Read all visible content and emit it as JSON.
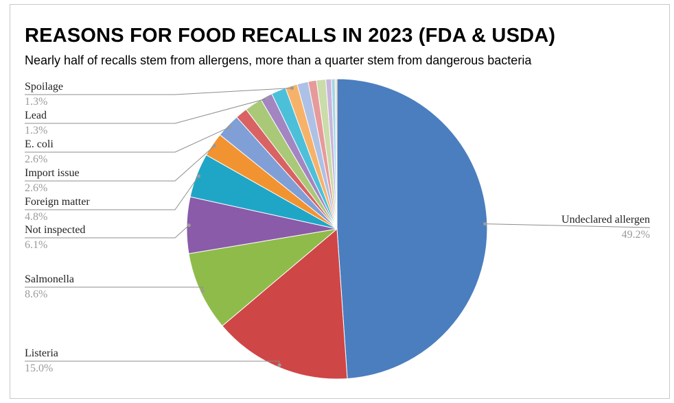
{
  "chart_data": {
    "type": "pie",
    "title": "REASONS FOR FOOD RECALLS IN 2023 (FDA & USDA)",
    "subtitle": "Nearly half of recalls stem from allergens, more than a quarter stem from dangerous bacteria",
    "slices": [
      {
        "name": "Undeclared allergen",
        "pct_label": "49.2%",
        "value": 49.2,
        "color": "#4a7ebf",
        "labeled": true
      },
      {
        "name": "Listeria",
        "pct_label": "15.0%",
        "value": 15.0,
        "color": "#cf4646",
        "labeled": true
      },
      {
        "name": "Salmonella",
        "pct_label": "8.6%",
        "value": 8.6,
        "color": "#8fbb4a",
        "labeled": true
      },
      {
        "name": "Not inspected",
        "pct_label": "6.1%",
        "value": 6.1,
        "color": "#8a5ba8",
        "labeled": true
      },
      {
        "name": "Foreign matter",
        "pct_label": "4.8%",
        "value": 4.8,
        "color": "#1fa6c7",
        "labeled": true
      },
      {
        "name": "Import issue",
        "pct_label": "2.6%",
        "value": 2.6,
        "color": "#f29332",
        "labeled": true
      },
      {
        "name": "E. coli",
        "pct_label": "2.6%",
        "value": 2.6,
        "color": "#7f9fd6",
        "labeled": true
      },
      {
        "name": "",
        "pct_label": "",
        "value": 1.3,
        "color": "#d96262",
        "labeled": false
      },
      {
        "name": "",
        "pct_label": "",
        "value": 1.9,
        "color": "#a9c978",
        "labeled": false
      },
      {
        "name": "Lead",
        "pct_label": "1.3%",
        "value": 1.3,
        "color": "#a385c2",
        "labeled": true
      },
      {
        "name": "",
        "pct_label": "",
        "value": 1.6,
        "color": "#4dc0d9",
        "labeled": false
      },
      {
        "name": "Spoilage",
        "pct_label": "1.3%",
        "value": 1.3,
        "color": "#f7b26a",
        "labeled": true
      },
      {
        "name": "",
        "pct_label": "",
        "value": 1.2,
        "color": "#adc1e6",
        "labeled": false
      },
      {
        "name": "",
        "pct_label": "",
        "value": 0.9,
        "color": "#e79a9a",
        "labeled": false
      },
      {
        "name": "",
        "pct_label": "",
        "value": 1.0,
        "color": "#c9dcaa",
        "labeled": false
      },
      {
        "name": "",
        "pct_label": "",
        "value": 0.6,
        "color": "#c8b5dc",
        "labeled": false
      },
      {
        "name": "",
        "pct_label": "",
        "value": 0.4,
        "color": "#9fd8e8",
        "labeled": false
      },
      {
        "name": "",
        "pct_label": "",
        "value": 0.2,
        "color": "#fad1a5",
        "labeled": false
      }
    ]
  }
}
